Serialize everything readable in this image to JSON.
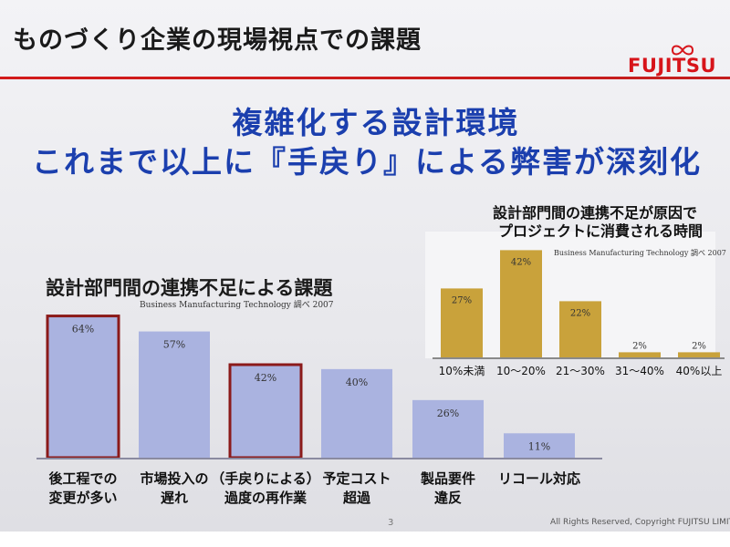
{
  "header": {
    "title": "ものづくり企業の現場視点での課題",
    "logo_text": "FUJITSU"
  },
  "headline": {
    "line1": "複雑化する設計環境",
    "line2": "これまで以上に『手戻り』による弊害が深刻化"
  },
  "footer": {
    "page_number": "3",
    "copyright": "All Rights Reserved, Copyright FUJITSU LIMITED"
  },
  "colors": {
    "bar_left": "#aab3e0",
    "bar_left_highlight_border": "#8b1a1a",
    "bar_right": "#c9a23b",
    "headline": "#1b3fae",
    "brand_red": "#d7141a"
  },
  "chart_data": [
    {
      "type": "bar",
      "title": "設計部門間の連携不足による課題",
      "source": "Business Manufacturing Technology 調べ 2007",
      "categories": [
        [
          "後工程での",
          "変更が多い"
        ],
        [
          "市場投入の",
          "遅れ"
        ],
        [
          "（手戻りによる）",
          "過度の再作業"
        ],
        [
          "予定コスト",
          "超過"
        ],
        [
          "製品要件",
          "違反"
        ],
        [
          "リコール対応",
          ""
        ]
      ],
      "values": [
        64,
        57,
        42,
        40,
        26,
        11
      ],
      "data_labels": [
        "64%",
        "57%",
        "42%",
        "40%",
        "26%",
        "11%"
      ],
      "highlighted": [
        true,
        false,
        true,
        false,
        false,
        false
      ],
      "ylim": [
        0,
        70
      ],
      "grid": false
    },
    {
      "type": "bar",
      "title_lines": [
        "設計部門間の連携不足が原因で",
        "プロジェクトに消費される時間"
      ],
      "source": "Business Manufacturing Technology 調べ 2007",
      "categories": [
        "10%未満",
        "10〜20%",
        "21〜30%",
        "31〜40%",
        "40%以上"
      ],
      "values": [
        27,
        42,
        22,
        2,
        2
      ],
      "data_labels": [
        "27%",
        "42%",
        "22%",
        "2%",
        "2%"
      ],
      "ylim": [
        0,
        45
      ],
      "grid": false
    }
  ]
}
